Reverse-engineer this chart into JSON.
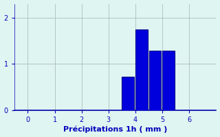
{
  "bar_lefts": [
    3.0,
    3.5,
    4.0,
    4.5,
    5.0
  ],
  "bar_heights": [
    0.0,
    0.72,
    1.75,
    1.28,
    1.28
  ],
  "bar_width": 0.45,
  "bar_color": "#0000dd",
  "bar_edge_color": "#000088",
  "background_color": "#dff5f2",
  "xlabel": "Précipitations 1h ( mm )",
  "xlabel_color": "#0000bb",
  "xlabel_fontsize": 8,
  "tick_color": "#0000bb",
  "tick_fontsize": 7,
  "xlim": [
    -0.5,
    7.0
  ],
  "ylim": [
    0,
    2.3
  ],
  "xticks": [
    0,
    1,
    2,
    3,
    4,
    5,
    6
  ],
  "yticks": [
    0,
    1,
    2
  ],
  "grid_color": "#aabfbf",
  "axis_color": "#0000aa"
}
